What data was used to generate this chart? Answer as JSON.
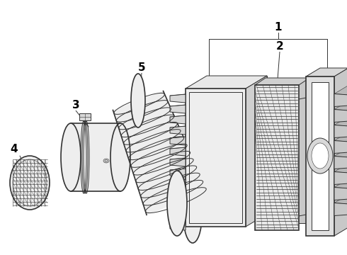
{
  "background_color": "#ffffff",
  "line_color": "#333333",
  "label_color": "#000000",
  "fig_width": 4.9,
  "fig_height": 3.6,
  "dpi": 100,
  "label_fontsize": 11,
  "label_fontweight": "bold"
}
